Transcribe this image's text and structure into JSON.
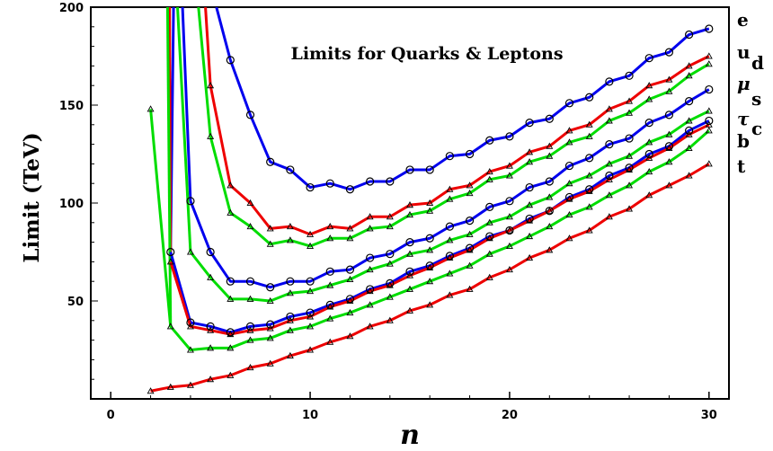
{
  "chart_data": {
    "type": "line",
    "title": "Limits for Quarks & Leptons",
    "xlabel": "n",
    "ylabel": "Limit (TeV)",
    "xlim": [
      -1,
      31
    ],
    "ylim": [
      0,
      200
    ],
    "xticks": [
      0,
      10,
      20,
      30
    ],
    "yticks": [
      50,
      100,
      150,
      200
    ],
    "grid": false,
    "legend_placement": "right",
    "legend_labels": [
      "e",
      "u",
      "d",
      "μ",
      "s",
      "τ",
      "c",
      "b",
      "t"
    ],
    "series": [
      {
        "color": "#0000ee",
        "marker": "circle",
        "x": [
          6,
          7,
          8,
          9,
          10,
          11,
          12,
          13,
          14,
          15,
          16,
          17,
          18,
          19,
          20,
          21,
          22,
          23,
          24,
          25,
          26,
          27,
          28,
          29,
          30
        ],
        "y": [
          173,
          145,
          121,
          117,
          108,
          110,
          107,
          111,
          111,
          117,
          117,
          124,
          125,
          132,
          134,
          141,
          143,
          151,
          154,
          162,
          165,
          174,
          177,
          186,
          189
        ]
      },
      {
        "color": "#ee0000",
        "marker": "triangle",
        "x": [
          5,
          6,
          7,
          8,
          9,
          10,
          11,
          12,
          13,
          14,
          15,
          16,
          17,
          18,
          19,
          20,
          21,
          22,
          23,
          24,
          25,
          26,
          27,
          28,
          29,
          30
        ],
        "y": [
          160,
          109,
          100,
          87,
          88,
          84,
          88,
          87,
          93,
          93,
          99,
          100,
          107,
          109,
          116,
          119,
          126,
          129,
          137,
          140,
          148,
          152,
          160,
          163,
          170,
          175
        ]
      },
      {
        "color": "#00dd00",
        "marker": "triangle",
        "x": [
          5,
          6,
          7,
          8,
          9,
          10,
          11,
          12,
          13,
          14,
          15,
          16,
          17,
          18,
          19,
          20,
          21,
          22,
          23,
          24,
          25,
          26,
          27,
          28,
          29,
          30
        ],
        "y": [
          134,
          95,
          88,
          79,
          81,
          78,
          82,
          82,
          87,
          88,
          94,
          96,
          102,
          105,
          112,
          114,
          121,
          124,
          131,
          134,
          142,
          146,
          153,
          157,
          165,
          171
        ]
      },
      {
        "color": "#0000ee",
        "marker": "circle",
        "x": [
          4,
          5,
          6,
          7,
          8,
          9,
          10,
          11,
          12,
          13,
          14,
          15,
          16,
          17,
          18,
          19,
          20,
          21,
          22,
          23,
          24,
          25,
          26,
          27,
          28,
          29,
          30
        ],
        "y": [
          101,
          75,
          60,
          60,
          57,
          60,
          60,
          65,
          66,
          72,
          74,
          80,
          82,
          88,
          91,
          98,
          101,
          108,
          111,
          119,
          123,
          130,
          133,
          141,
          145,
          152,
          158
        ]
      },
      {
        "color": "#00dd00",
        "marker": "triangle",
        "x": [
          4,
          5,
          6,
          7,
          8,
          9,
          10,
          11,
          12,
          13,
          14,
          15,
          16,
          17,
          18,
          19,
          20,
          21,
          22,
          23,
          24,
          25,
          26,
          27,
          28,
          29,
          30
        ],
        "y": [
          75,
          62,
          51,
          51,
          50,
          54,
          55,
          58,
          61,
          66,
          69,
          74,
          76,
          81,
          84,
          90,
          93,
          99,
          103,
          110,
          114,
          120,
          124,
          131,
          135,
          142,
          147
        ]
      },
      {
        "color": "#0000ee",
        "marker": "circle",
        "x": [
          3,
          4,
          5,
          6,
          7,
          8,
          9,
          10,
          11,
          12,
          13,
          14,
          15,
          16,
          17,
          18,
          19,
          20,
          21,
          22,
          23,
          24,
          25,
          26,
          27,
          28,
          29,
          30
        ],
        "y": [
          75,
          39,
          37,
          34,
          37,
          38,
          42,
          44,
          48,
          51,
          56,
          59,
          65,
          68,
          73,
          77,
          83,
          86,
          92,
          96,
          103,
          107,
          114,
          118,
          125,
          129,
          137,
          142
        ]
      },
      {
        "color": "#ee0000",
        "marker": "triangle",
        "x": [
          3,
          4,
          5,
          6,
          7,
          8,
          9,
          10,
          11,
          12,
          13,
          14,
          15,
          16,
          17,
          18,
          19,
          20,
          21,
          22,
          23,
          24,
          25,
          26,
          27,
          28,
          29,
          30
        ],
        "y": [
          70,
          37,
          35,
          33,
          35,
          36,
          40,
          42,
          47,
          50,
          55,
          58,
          63,
          67,
          72,
          76,
          82,
          86,
          91,
          96,
          102,
          106,
          112,
          117,
          123,
          128,
          135,
          140
        ]
      },
      {
        "color": "#00dd00",
        "marker": "triangle",
        "x": [
          2,
          3,
          4,
          5,
          6,
          7,
          8,
          9,
          10,
          11,
          12,
          13,
          14,
          15,
          16,
          17,
          18,
          19,
          20,
          21,
          22,
          23,
          24,
          25,
          26,
          27,
          28,
          29,
          30
        ],
        "y": [
          148,
          37,
          25,
          26,
          26,
          30,
          31,
          35,
          37,
          41,
          44,
          48,
          52,
          56,
          60,
          64,
          68,
          74,
          78,
          83,
          88,
          94,
          98,
          104,
          109,
          116,
          121,
          128,
          137
        ]
      },
      {
        "color": "#ee0000",
        "marker": "triangle",
        "x": [
          2,
          3,
          4,
          5,
          6,
          7,
          8,
          9,
          10,
          11,
          12,
          13,
          14,
          15,
          16,
          17,
          18,
          19,
          20,
          21,
          22,
          23,
          24,
          25,
          26,
          27,
          28,
          29,
          30
        ],
        "y": [
          4,
          6,
          7,
          10,
          12,
          16,
          18,
          22,
          25,
          29,
          32,
          37,
          40,
          45,
          48,
          53,
          56,
          62,
          66,
          72,
          76,
          82,
          86,
          93,
          97,
          104,
          109,
          114,
          120
        ]
      }
    ],
    "steep_segments": [
      {
        "color": "#0000ee",
        "x": [
          5.3,
          6
        ],
        "y": [
          200,
          173
        ]
      },
      {
        "color": "#ee0000",
        "x": [
          4.75,
          5
        ],
        "y": [
          200,
          160
        ]
      },
      {
        "color": "#00dd00",
        "x": [
          4.4,
          5
        ],
        "y": [
          200,
          134
        ]
      },
      {
        "color": "#0000ee",
        "x": [
          3.6,
          4
        ],
        "y": [
          200,
          101
        ]
      },
      {
        "color": "#00dd00",
        "x": [
          3.35,
          4
        ],
        "y": [
          200,
          75
        ]
      },
      {
        "color": "#0000ee",
        "x": [
          3.15,
          3
        ],
        "y": [
          200,
          75
        ]
      },
      {
        "color": "#ee0000",
        "x": [
          2.95,
          3
        ],
        "y": [
          200,
          70
        ]
      },
      {
        "color": "#00dd00",
        "x": [
          2.85,
          3
        ],
        "y": [
          200,
          37
        ]
      }
    ]
  }
}
